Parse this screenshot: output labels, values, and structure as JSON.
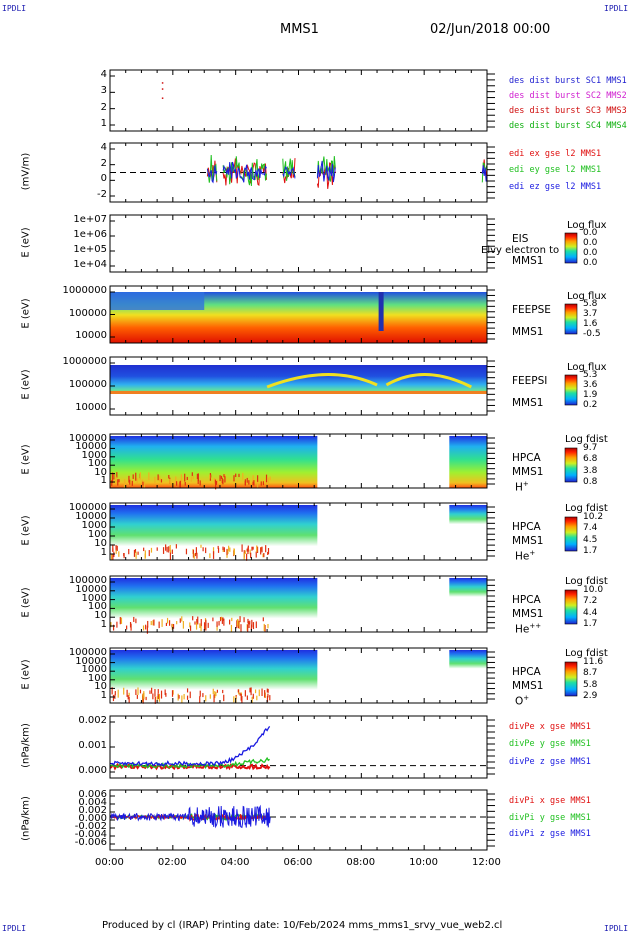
{
  "header": {
    "corner_label": "IPDLI",
    "title": "MMS1",
    "datetime": "02/Jun/2018 00:00"
  },
  "footer": {
    "text": "Produced by cl (IRAP)   Printing date: 10/Feb/2024   mms_mms1_srvy_vue_web2.cl"
  },
  "colors": {
    "mms1": "#1f1fd0",
    "mms2": "#d020d0",
    "mms3": "#d01010",
    "mms4": "#10b010",
    "x_component": "#e01010",
    "y_component": "#20c020",
    "z_component": "#1a1ae0"
  },
  "chart_data": [
    {
      "type": "scatter",
      "panel": "dist-burst",
      "ylabel": "",
      "yticks": [
        "4",
        "3",
        "2",
        "1"
      ],
      "ylim": [
        0.5,
        4.5
      ],
      "legend": [
        {
          "label": "des dist burst SC1 MMS1",
          "color": "#1f1fd0"
        },
        {
          "label": "des dist burst SC2 MMS2",
          "color": "#d020d0"
        },
        {
          "label": "des dist burst SC3 MMS3",
          "color": "#d01010"
        },
        {
          "label": "des dist burst SC4 MMS4",
          "color": "#10b010"
        }
      ]
    },
    {
      "type": "line",
      "panel": "edi-e",
      "ylabel": "(mV/m)",
      "yticks": [
        "4",
        "2",
        "0",
        "-2"
      ],
      "ylim": [
        -3,
        4.5
      ],
      "legend": [
        {
          "label": "edi ex gse l2 MMS1",
          "color": "#e01010"
        },
        {
          "label": "edi ey gse l2 MMS1",
          "color": "#20c020"
        },
        {
          "label": "edi ez gse l2 MMS1",
          "color": "#1a1ae0"
        }
      ]
    },
    {
      "type": "heatmap",
      "panel": "eis",
      "ylabel": "E (eV)",
      "yticks": [
        "1e+07",
        "1e+06",
        "1e+05",
        "1e+04"
      ],
      "instrument": [
        "EIS",
        "MMS1"
      ],
      "overlay_text": "Elvy electron to",
      "colorbar": {
        "label": "Log flux",
        "values": [
          "0.0",
          "0.0",
          "0.0",
          "0.0"
        ]
      }
    },
    {
      "type": "heatmap",
      "panel": "feeps-e",
      "ylabel": "E (eV)",
      "yticks": [
        "1000000",
        "100000",
        "10000"
      ],
      "instrument": [
        "FEEPSE",
        "MMS1"
      ],
      "colorbar": {
        "label": "Log flux",
        "values": [
          "5.8",
          "3.7",
          "1.6",
          "-0.5"
        ]
      }
    },
    {
      "type": "heatmap",
      "panel": "feeps-i",
      "ylabel": "E (eV)",
      "yticks": [
        "1000000",
        "100000",
        "10000"
      ],
      "instrument": [
        "FEEPSI",
        "MMS1"
      ],
      "colorbar": {
        "label": "Log flux",
        "values": [
          "5.3",
          "3.6",
          "1.9",
          "0.2"
        ]
      }
    },
    {
      "type": "heatmap",
      "panel": "hpca-h",
      "ylabel": "E (eV)",
      "yticks": [
        "100000",
        "10000",
        "1000",
        "100",
        "10",
        "1"
      ],
      "instrument": [
        "HPCA",
        "MMS1"
      ],
      "species": {
        "base": "H",
        "sup": "+"
      },
      "colorbar": {
        "label": "Log fdist",
        "values": [
          "9.7",
          "6.8",
          "3.8",
          "0.8"
        ]
      }
    },
    {
      "type": "heatmap",
      "panel": "hpca-he",
      "ylabel": "E (eV)",
      "yticks": [
        "100000",
        "10000",
        "1000",
        "100",
        "10",
        "1"
      ],
      "instrument": [
        "HPCA",
        "MMS1"
      ],
      "species": {
        "base": "He",
        "sup": "+"
      },
      "colorbar": {
        "label": "Log fdist",
        "values": [
          "10.2",
          "7.4",
          "4.5",
          "1.7"
        ]
      }
    },
    {
      "type": "heatmap",
      "panel": "hpca-hepp",
      "ylabel": "E (eV)",
      "yticks": [
        "100000",
        "10000",
        "1000",
        "100",
        "10",
        "1"
      ],
      "instrument": [
        "HPCA",
        "MMS1"
      ],
      "species": {
        "base": "He",
        "sup": "++"
      },
      "colorbar": {
        "label": "Log fdist",
        "values": [
          "10.0",
          "7.2",
          "4.4",
          "1.7"
        ]
      }
    },
    {
      "type": "heatmap",
      "panel": "hpca-o",
      "ylabel": "E (eV)",
      "yticks": [
        "100000",
        "10000",
        "1000",
        "100",
        "10",
        "1"
      ],
      "instrument": [
        "HPCA",
        "MMS1"
      ],
      "species": {
        "base": "O",
        "sup": "+"
      },
      "colorbar": {
        "label": "Log fdist",
        "values": [
          "11.6",
          "8.7",
          "5.8",
          "2.9"
        ]
      }
    },
    {
      "type": "line",
      "panel": "divpe",
      "ylabel": "(nPa/km)",
      "yticks": [
        "0.002",
        "0.001",
        "0.000"
      ],
      "ylim": [
        -0.0005,
        0.0026
      ],
      "legend": [
        {
          "label": "divPe x gse MMS1",
          "color": "#e01010"
        },
        {
          "label": "divPe y gse MMS1",
          "color": "#20c020"
        },
        {
          "label": "divPe z gse MMS1",
          "color": "#1a1ae0"
        }
      ]
    },
    {
      "type": "line",
      "panel": "divpi",
      "ylabel": "(nPa/km)",
      "yticks": [
        "0.006",
        "0.004",
        "0.002",
        "0.000",
        "-0.002",
        "-0.004",
        "-0.006"
      ],
      "ylim": [
        -0.007,
        0.007
      ],
      "legend": [
        {
          "label": "divPi x gse MMS1",
          "color": "#e01010"
        },
        {
          "label": "divPi y gse MMS1",
          "color": "#20c020"
        },
        {
          "label": "divPi z gse MMS1",
          "color": "#1a1ae0"
        }
      ]
    }
  ],
  "xaxis": {
    "ticks": [
      "00:00",
      "02:00",
      "04:00",
      "06:00",
      "08:00",
      "10:00",
      "12:00"
    ],
    "xlim_hours": [
      0,
      12
    ]
  }
}
